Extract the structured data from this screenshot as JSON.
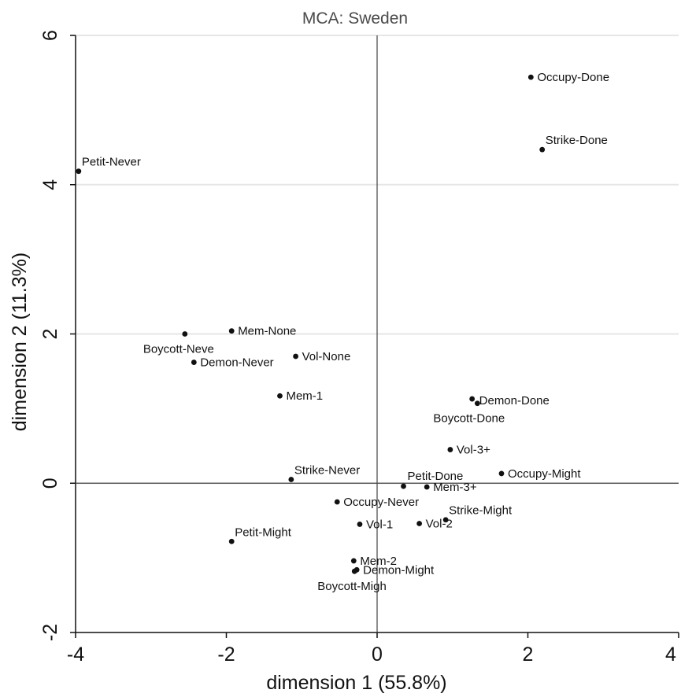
{
  "chart_data": {
    "type": "scatter",
    "title": "MCA:  Sweden",
    "xlabel": "dimension 1 (55.8%)",
    "ylabel": "dimension 2 (11.3%)",
    "xlim": [
      -4,
      4
    ],
    "ylim": [
      -2,
      6
    ],
    "xticks": [
      "-4",
      "-2",
      "0",
      "2",
      "4"
    ],
    "yticks": [
      "-2",
      "0",
      "2",
      "4",
      "6"
    ],
    "grid": true,
    "reference_lines": {
      "x": 0,
      "y": 0
    },
    "colors": {
      "points": "#111111",
      "grid": "#e6e6e6"
    },
    "points": [
      {
        "label": "Occupy-Done",
        "x": 2.04,
        "y": 5.44
      },
      {
        "label": "Strike-Done",
        "x": 2.19,
        "y": 4.47
      },
      {
        "label": "Petit-Never",
        "x": -3.96,
        "y": 4.18
      },
      {
        "label": "Boycott-Neve",
        "x": -2.55,
        "y": 2.0
      },
      {
        "label": "Mem-None",
        "x": -1.93,
        "y": 2.04
      },
      {
        "label": "Demon-Never",
        "x": -2.43,
        "y": 1.62
      },
      {
        "label": "Vol-None",
        "x": -1.08,
        "y": 1.7
      },
      {
        "label": "Mem-1",
        "x": -1.29,
        "y": 1.17
      },
      {
        "label": "Demon-Done",
        "x": 1.26,
        "y": 1.13
      },
      {
        "label": "Boycott-Done",
        "x": 1.33,
        "y": 1.07
      },
      {
        "label": "Vol-3+",
        "x": 0.97,
        "y": 0.45
      },
      {
        "label": "Occupy-Might",
        "x": 1.65,
        "y": 0.13
      },
      {
        "label": "Strike-Never",
        "x": -1.14,
        "y": 0.05
      },
      {
        "label": "Petit-Done",
        "x": 0.35,
        "y": -0.04
      },
      {
        "label": "Mem-3+",
        "x": 0.66,
        "y": -0.05
      },
      {
        "label": "Occupy-Never",
        "x": -0.53,
        "y": -0.25
      },
      {
        "label": "Strike-Might",
        "x": 0.91,
        "y": -0.49
      },
      {
        "label": "Vol-1",
        "x": -0.23,
        "y": -0.55
      },
      {
        "label": "Vol-2",
        "x": 0.56,
        "y": -0.54
      },
      {
        "label": "Petit-Might",
        "x": -1.93,
        "y": -0.78
      },
      {
        "label": "Mem-2",
        "x": -0.31,
        "y": -1.04
      },
      {
        "label": "Demon-Might",
        "x": -0.27,
        "y": -1.16
      },
      {
        "label": "Boycott-Migh",
        "x": -0.3,
        "y": -1.18
      }
    ]
  }
}
